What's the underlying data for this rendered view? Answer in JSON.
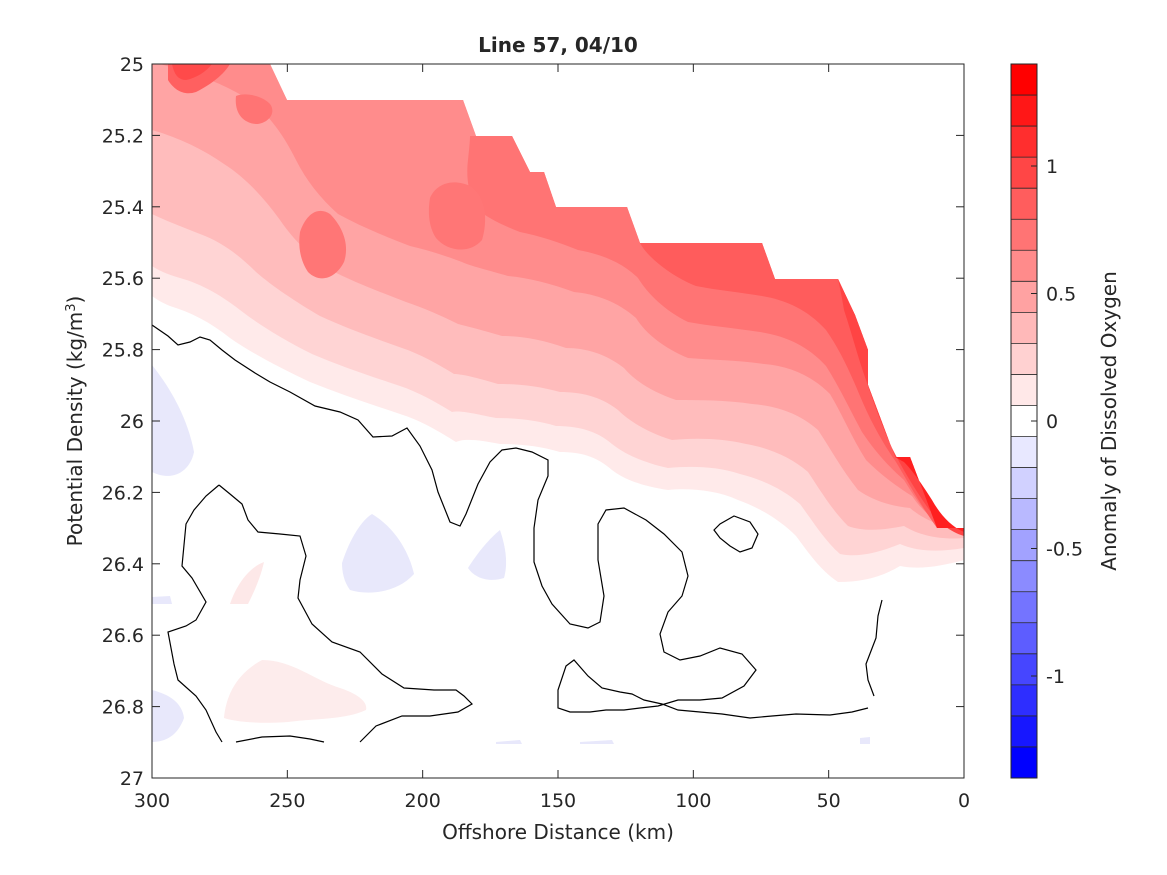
{
  "chart_data": {
    "type": "heatmap",
    "title": "Line 57, 04/10",
    "xlabel": "Offshore Distance (km)",
    "ylabel_main": "Potential Density (kg/m",
    "ylabel_sup": "3",
    "ylabel_close": ")",
    "xlim": [
      300,
      0
    ],
    "ylim": [
      25,
      27
    ],
    "x_reversed": true,
    "y_reversed": true,
    "x_ticks": [
      300,
      250,
      200,
      150,
      100,
      50,
      0
    ],
    "x_tick_labels": [
      "300",
      "250",
      "200",
      "150",
      "100",
      "50",
      "0"
    ],
    "y_ticks": [
      25,
      25.2,
      25.4,
      25.6,
      25.8,
      26,
      26.2,
      26.4,
      26.6,
      26.8,
      27
    ],
    "y_tick_labels": [
      "25",
      "25.2",
      "25.4",
      "25.6",
      "25.8",
      "26",
      "26.2",
      "26.4",
      "26.6",
      "26.8",
      "27"
    ],
    "zero_contour_level": 0,
    "colorbar": {
      "label": "Anomaly of Dissolved Oxygen",
      "range": [
        -1.4,
        1.4
      ],
      "levels": 23,
      "ticks": [
        -1,
        -0.5,
        0,
        0.5,
        1
      ],
      "tick_labels": [
        "-1",
        "-0.5",
        "0",
        "0.5",
        "1"
      ],
      "negative_color": "#0000ff",
      "positive_color": "#ff0000",
      "zero_color": "#ffffff"
    },
    "data_extent_upper_boundary": [
      {
        "x": 300,
        "y": 25.0
      },
      {
        "x": 250,
        "y": 25.0
      },
      {
        "x": 250,
        "y": 25.1
      },
      {
        "x": 185,
        "y": 25.1
      },
      {
        "x": 175,
        "y": 25.2
      },
      {
        "x": 165,
        "y": 25.2
      },
      {
        "x": 160,
        "y": 25.3
      },
      {
        "x": 155,
        "y": 25.3
      },
      {
        "x": 150,
        "y": 25.4
      },
      {
        "x": 125,
        "y": 25.4
      },
      {
        "x": 118,
        "y": 25.5
      },
      {
        "x": 75,
        "y": 25.5
      },
      {
        "x": 70,
        "y": 25.6
      },
      {
        "x": 45,
        "y": 25.6
      },
      {
        "x": 35,
        "y": 25.8
      },
      {
        "x": 35,
        "y": 25.85
      },
      {
        "x": 25,
        "y": 26.1
      },
      {
        "x": 20,
        "y": 26.1
      },
      {
        "x": 10,
        "y": 26.3
      },
      {
        "x": 0,
        "y": 26.3
      }
    ]
  }
}
